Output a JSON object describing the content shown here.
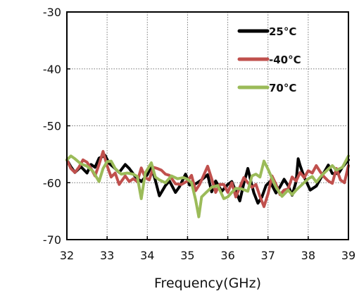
{
  "chart_data": {
    "type": "line",
    "title": "",
    "xlabel": "Frequency(GHz)",
    "ylabel": "",
    "xlim": [
      32,
      39
    ],
    "ylim": [
      -70,
      -30
    ],
    "xticks": [
      32,
      33,
      34,
      35,
      36,
      37,
      38,
      39
    ],
    "yticks": [
      -30,
      -40,
      -50,
      -60,
      -70
    ],
    "grid": true,
    "legend_position": "top-right",
    "series": [
      {
        "name": "25°C",
        "color": "#000000",
        "points": [
          [
            32,
            -56
          ],
          [
            32.1,
            -57.2
          ],
          [
            32.2,
            -58.2
          ],
          [
            32.35,
            -57.2
          ],
          [
            32.5,
            -58.3
          ],
          [
            32.6,
            -56.8
          ],
          [
            32.7,
            -57.3
          ],
          [
            32.8,
            -55.7
          ],
          [
            32.95,
            -55.2
          ],
          [
            33.05,
            -56.6
          ],
          [
            33.15,
            -57.2
          ],
          [
            33.3,
            -58.2
          ],
          [
            33.45,
            -56.8
          ],
          [
            33.55,
            -57.5
          ],
          [
            33.7,
            -58.9
          ],
          [
            33.85,
            -59.8
          ],
          [
            34.0,
            -58.6
          ],
          [
            34.1,
            -57.1
          ],
          [
            34.2,
            -59.6
          ],
          [
            34.3,
            -62.3
          ],
          [
            34.45,
            -60.5
          ],
          [
            34.55,
            -59.7
          ],
          [
            34.7,
            -61.7
          ],
          [
            34.8,
            -60.7
          ],
          [
            34.95,
            -58.5
          ],
          [
            35.05,
            -60.4
          ],
          [
            35.2,
            -60.2
          ],
          [
            35.35,
            -59.5
          ],
          [
            35.5,
            -58.6
          ],
          [
            35.6,
            -61.6
          ],
          [
            35.7,
            -59.7
          ],
          [
            35.85,
            -61.5
          ],
          [
            36.0,
            -60.3
          ],
          [
            36.1,
            -59.8
          ],
          [
            36.2,
            -61.5
          ],
          [
            36.3,
            -63.2
          ],
          [
            36.4,
            -60.1
          ],
          [
            36.5,
            -57.5
          ],
          [
            36.6,
            -60.5
          ],
          [
            36.65,
            -61.8
          ],
          [
            36.75,
            -63.6
          ],
          [
            36.85,
            -62.5
          ],
          [
            36.95,
            -60.5
          ],
          [
            37.05,
            -59.8
          ],
          [
            37.2,
            -61.8
          ],
          [
            37.3,
            -60.7
          ],
          [
            37.4,
            -59.4
          ],
          [
            37.5,
            -60.5
          ],
          [
            37.6,
            -62.2
          ],
          [
            37.7,
            -59.8
          ],
          [
            37.75,
            -55.8
          ],
          [
            37.8,
            -57.0
          ],
          [
            37.9,
            -59.0
          ],
          [
            38.05,
            -61.3
          ],
          [
            38.2,
            -60.6
          ],
          [
            38.35,
            -58.7
          ],
          [
            38.5,
            -56.9
          ],
          [
            38.6,
            -58.4
          ],
          [
            38.75,
            -58.4
          ],
          [
            38.85,
            -57.3
          ],
          [
            39,
            -56
          ]
        ]
      },
      {
        "name": "-40°C",
        "color": "#c0504d",
        "points": [
          [
            32,
            -56
          ],
          [
            32.1,
            -57.5
          ],
          [
            32.2,
            -58.2
          ],
          [
            32.3,
            -57.3
          ],
          [
            32.4,
            -56
          ],
          [
            32.5,
            -56.4
          ],
          [
            32.6,
            -57.5
          ],
          [
            32.7,
            -58.8
          ],
          [
            32.8,
            -56.8
          ],
          [
            32.9,
            -54.5
          ],
          [
            33.0,
            -57.0
          ],
          [
            33.1,
            -59.0
          ],
          [
            33.2,
            -58.3
          ],
          [
            33.3,
            -60.3
          ],
          [
            33.45,
            -58.8
          ],
          [
            33.55,
            -59.8
          ],
          [
            33.65,
            -59.3
          ],
          [
            33.75,
            -59.8
          ],
          [
            33.85,
            -57.4
          ],
          [
            33.95,
            -59.1
          ],
          [
            34.05,
            -59.5
          ],
          [
            34.15,
            -57.3
          ],
          [
            34.25,
            -57.5
          ],
          [
            34.35,
            -57.8
          ],
          [
            34.45,
            -58.5
          ],
          [
            34.55,
            -58.7
          ],
          [
            34.7,
            -60.2
          ],
          [
            34.85,
            -60.3
          ],
          [
            35.0,
            -59.7
          ],
          [
            35.1,
            -58.7
          ],
          [
            35.2,
            -61.4
          ],
          [
            35.3,
            -60.3
          ],
          [
            35.4,
            -58.7
          ],
          [
            35.5,
            -57.1
          ],
          [
            35.6,
            -59.3
          ],
          [
            35.7,
            -61.7
          ],
          [
            35.8,
            -60.3
          ],
          [
            35.9,
            -60.3
          ],
          [
            36.0,
            -61.7
          ],
          [
            36.1,
            -60.0
          ],
          [
            36.2,
            -62.5
          ],
          [
            36.3,
            -60.8
          ],
          [
            36.4,
            -59.1
          ],
          [
            36.5,
            -60.0
          ],
          [
            36.6,
            -60.8
          ],
          [
            36.7,
            -60.3
          ],
          [
            36.8,
            -62.4
          ],
          [
            36.9,
            -64.2
          ],
          [
            37.0,
            -62.0
          ],
          [
            37.1,
            -58.8
          ],
          [
            37.2,
            -60.3
          ],
          [
            37.3,
            -62.1
          ],
          [
            37.4,
            -61.3
          ],
          [
            37.5,
            -61.1
          ],
          [
            37.6,
            -59.0
          ],
          [
            37.7,
            -59.7
          ],
          [
            37.8,
            -58.2
          ],
          [
            37.9,
            -59.1
          ],
          [
            38.0,
            -57.9
          ],
          [
            38.1,
            -58.3
          ],
          [
            38.2,
            -57.0
          ],
          [
            38.3,
            -58.1
          ],
          [
            38.4,
            -59.0
          ],
          [
            38.5,
            -59.7
          ],
          [
            38.6,
            -60.1
          ],
          [
            38.7,
            -57.5
          ],
          [
            38.8,
            -59.5
          ],
          [
            38.9,
            -60.0
          ],
          [
            39,
            -57
          ]
        ]
      },
      {
        "name": "70°C",
        "color": "#9bbb59",
        "points": [
          [
            32,
            -56
          ],
          [
            32.1,
            -55.3
          ],
          [
            32.2,
            -55.8
          ],
          [
            32.35,
            -56.7
          ],
          [
            32.5,
            -57.1
          ],
          [
            32.65,
            -58.0
          ],
          [
            32.8,
            -59.8
          ],
          [
            32.9,
            -57.5
          ],
          [
            33.0,
            -56.3
          ],
          [
            33.1,
            -56.2
          ],
          [
            33.2,
            -57.5
          ],
          [
            33.35,
            -58.5
          ],
          [
            33.5,
            -58.3
          ],
          [
            33.65,
            -58.5
          ],
          [
            33.75,
            -58.9
          ],
          [
            33.85,
            -62.8
          ],
          [
            33.95,
            -58.3
          ],
          [
            34.1,
            -56.5
          ],
          [
            34.2,
            -59.0
          ],
          [
            34.3,
            -59.5
          ],
          [
            34.45,
            -60.0
          ],
          [
            34.6,
            -58.8
          ],
          [
            34.75,
            -59.3
          ],
          [
            34.9,
            -59.1
          ],
          [
            35.0,
            -59.4
          ],
          [
            35.1,
            -60.0
          ],
          [
            35.2,
            -63.0
          ],
          [
            35.28,
            -66.0
          ],
          [
            35.35,
            -62.5
          ],
          [
            35.45,
            -61.8
          ],
          [
            35.6,
            -60.8
          ],
          [
            35.75,
            -60.5
          ],
          [
            35.9,
            -62.8
          ],
          [
            36.0,
            -62.5
          ],
          [
            36.1,
            -61.7
          ],
          [
            36.2,
            -61.0
          ],
          [
            36.35,
            -61.1
          ],
          [
            36.5,
            -61.5
          ],
          [
            36.6,
            -58.8
          ],
          [
            36.7,
            -58.5
          ],
          [
            36.8,
            -59.0
          ],
          [
            36.9,
            -56.2
          ],
          [
            37.0,
            -57.6
          ],
          [
            37.1,
            -59.2
          ],
          [
            37.2,
            -60.8
          ],
          [
            37.35,
            -62.4
          ],
          [
            37.5,
            -61.3
          ],
          [
            37.6,
            -62.1
          ],
          [
            37.7,
            -61.3
          ],
          [
            37.85,
            -60.3
          ],
          [
            38.0,
            -59.3
          ],
          [
            38.1,
            -58.9
          ],
          [
            38.2,
            -59.9
          ],
          [
            38.35,
            -58.6
          ],
          [
            38.5,
            -57.6
          ],
          [
            38.6,
            -57.0
          ],
          [
            38.7,
            -57.8
          ],
          [
            38.85,
            -57.3
          ],
          [
            39,
            -55.3
          ]
        ]
      }
    ]
  }
}
